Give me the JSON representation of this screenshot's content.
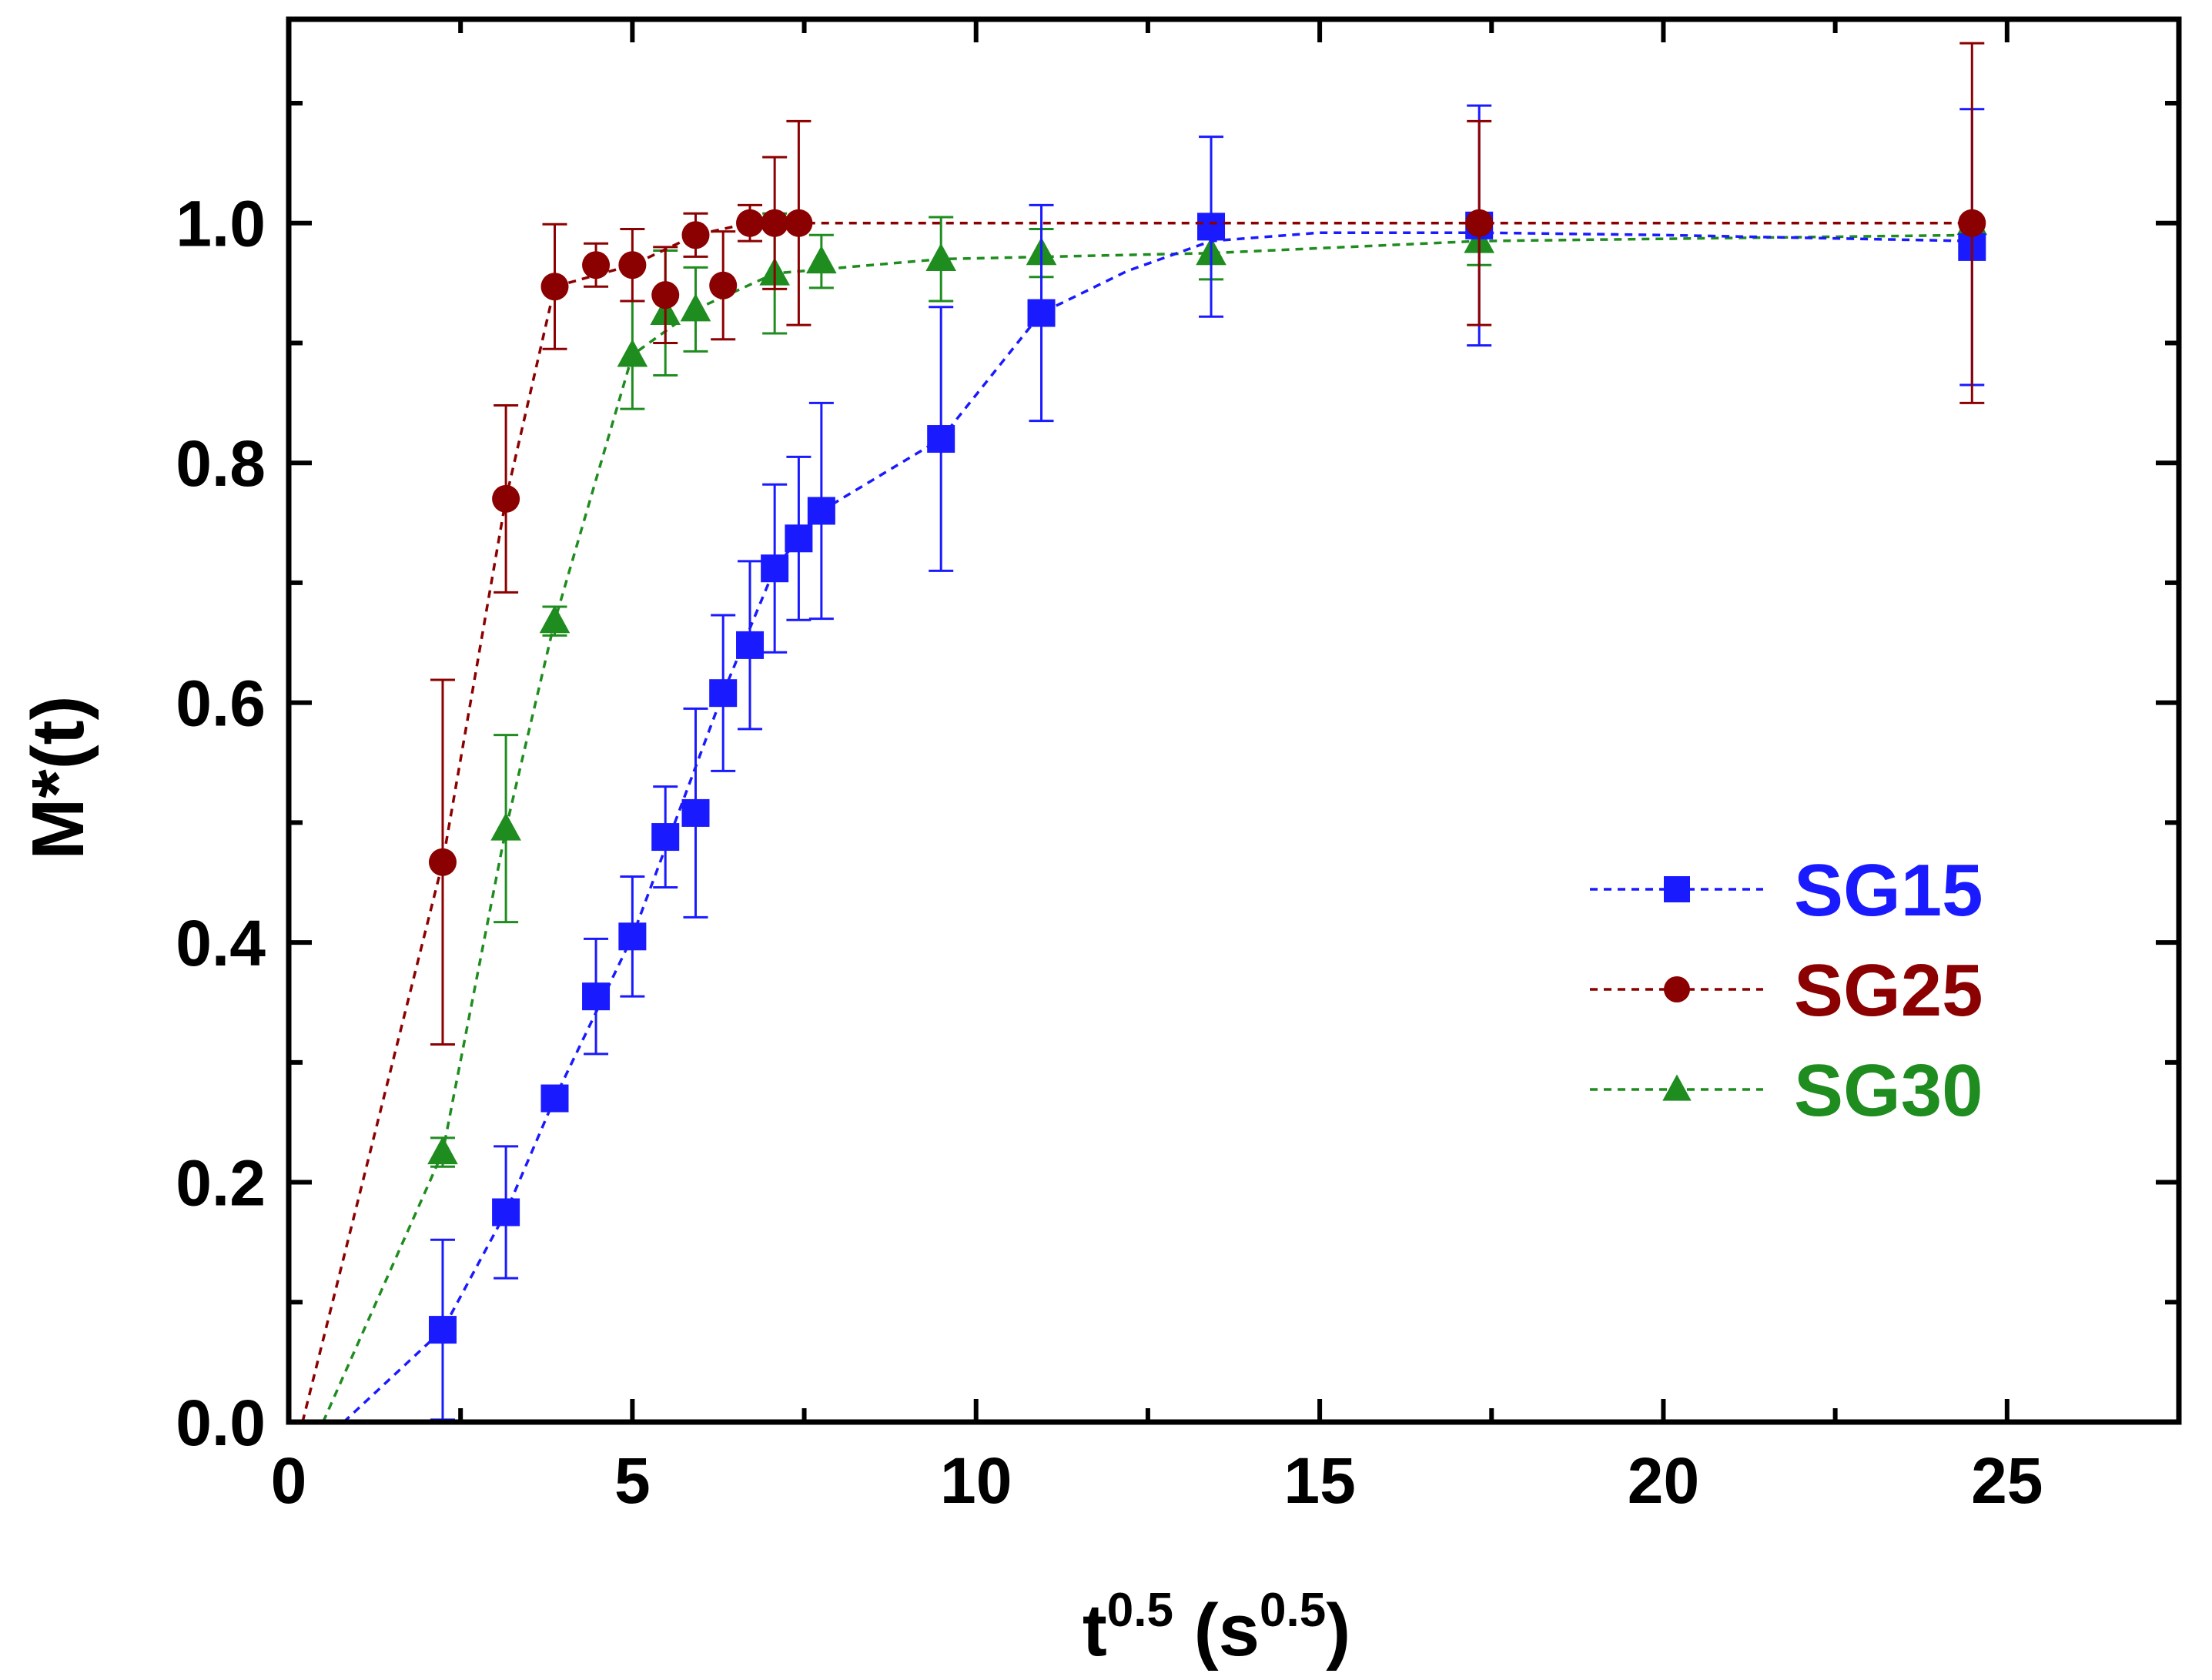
{
  "chart_data": {
    "type": "scatter",
    "xlabel": {
      "base": "t",
      "sup": "0.5",
      "unit_open": " (s",
      "unit_sup": "0.5",
      "unit_close": ")"
    },
    "ylabel": "M*(t)",
    "xlim": [
      0,
      27.5
    ],
    "ylim": [
      0,
      1.17
    ],
    "xticks": [
      0,
      5,
      10,
      15,
      20,
      25
    ],
    "xtick_labels": [
      "0",
      "5",
      "10",
      "15",
      "20",
      "25"
    ],
    "yticks": [
      0.0,
      0.2,
      0.4,
      0.6,
      0.8,
      1.0
    ],
    "ytick_labels": [
      "0.0",
      "0.2",
      "0.4",
      "0.6",
      "0.8",
      "1.0"
    ],
    "grid": false,
    "legend": "right-middle",
    "series": [
      {
        "name": "SG15",
        "color": "#1a1aff",
        "marker": "square",
        "x": [
          2.24,
          3.16,
          3.87,
          4.47,
          5.0,
          5.48,
          5.92,
          6.32,
          6.71,
          7.07,
          7.42,
          7.75,
          9.49,
          10.95,
          13.42,
          17.32,
          24.49
        ],
        "y": [
          0.077,
          0.175,
          0.27,
          0.355,
          0.405,
          0.488,
          0.508,
          0.608,
          0.648,
          0.712,
          0.737,
          0.76,
          0.82,
          0.925,
          0.997,
          0.998,
          0.98
        ],
        "err": [
          0.075,
          0.055,
          0.01,
          0.048,
          0.05,
          0.042,
          0.087,
          0.065,
          0.07,
          0.07,
          0.068,
          0.09,
          0.11,
          0.09,
          0.075,
          0.1,
          0.115
        ],
        "fit_x": [
          0.8,
          2.24,
          3.16,
          3.87,
          5.0,
          6.32,
          7.07,
          7.75,
          9.49,
          10.95,
          12.2,
          13.42,
          15.0,
          17.32,
          20.0,
          24.49
        ],
        "fit_y": [
          0.0,
          0.077,
          0.175,
          0.27,
          0.405,
          0.608,
          0.712,
          0.76,
          0.82,
          0.925,
          0.96,
          0.985,
          0.992,
          0.992,
          0.99,
          0.985
        ]
      },
      {
        "name": "SG25",
        "color": "#8b0000",
        "marker": "circle",
        "x": [
          2.24,
          3.16,
          3.87,
          4.47,
          5.0,
          5.48,
          5.92,
          6.32,
          6.71,
          7.07,
          7.42,
          17.32,
          24.49
        ],
        "y": [
          0.467,
          0.77,
          0.947,
          0.965,
          0.965,
          0.94,
          0.99,
          0.948,
          1.0,
          1.0,
          1.0,
          1.0,
          1.0
        ],
        "err": [
          0.152,
          0.078,
          0.052,
          0.018,
          0.03,
          0.04,
          0.018,
          0.045,
          0.015,
          0.055,
          0.085,
          0.085,
          0.15
        ],
        "fit_x": [
          0.2,
          2.24,
          3.16,
          3.87,
          5.0,
          5.92,
          6.71,
          7.42,
          10.0,
          17.32,
          24.49
        ],
        "fit_y": [
          0.0,
          0.467,
          0.77,
          0.947,
          0.965,
          0.99,
          1.0,
          1.0,
          1.0,
          1.0,
          1.0
        ]
      },
      {
        "name": "SG30",
        "color": "#1f8c1f",
        "marker": "triangle",
        "x": [
          2.24,
          3.16,
          3.87,
          5.0,
          5.48,
          5.92,
          7.07,
          7.75,
          9.49,
          10.95,
          13.42,
          17.32,
          24.49
        ],
        "y": [
          0.225,
          0.495,
          0.668,
          0.89,
          0.925,
          0.928,
          0.958,
          0.968,
          0.97,
          0.975,
          0.975,
          0.985,
          1.0
        ],
        "err": [
          0.012,
          0.078,
          0.012,
          0.045,
          0.052,
          0.035,
          0.05,
          0.022,
          0.035,
          0.02,
          0.022,
          0.02,
          0.005
        ],
        "fit_x": [
          0.5,
          2.24,
          3.16,
          3.87,
          5.0,
          5.92,
          7.07,
          9.49,
          13.42,
          17.32,
          24.49
        ],
        "fit_y": [
          0.0,
          0.225,
          0.495,
          0.668,
          0.89,
          0.928,
          0.958,
          0.97,
          0.975,
          0.985,
          0.99
        ]
      }
    ]
  }
}
